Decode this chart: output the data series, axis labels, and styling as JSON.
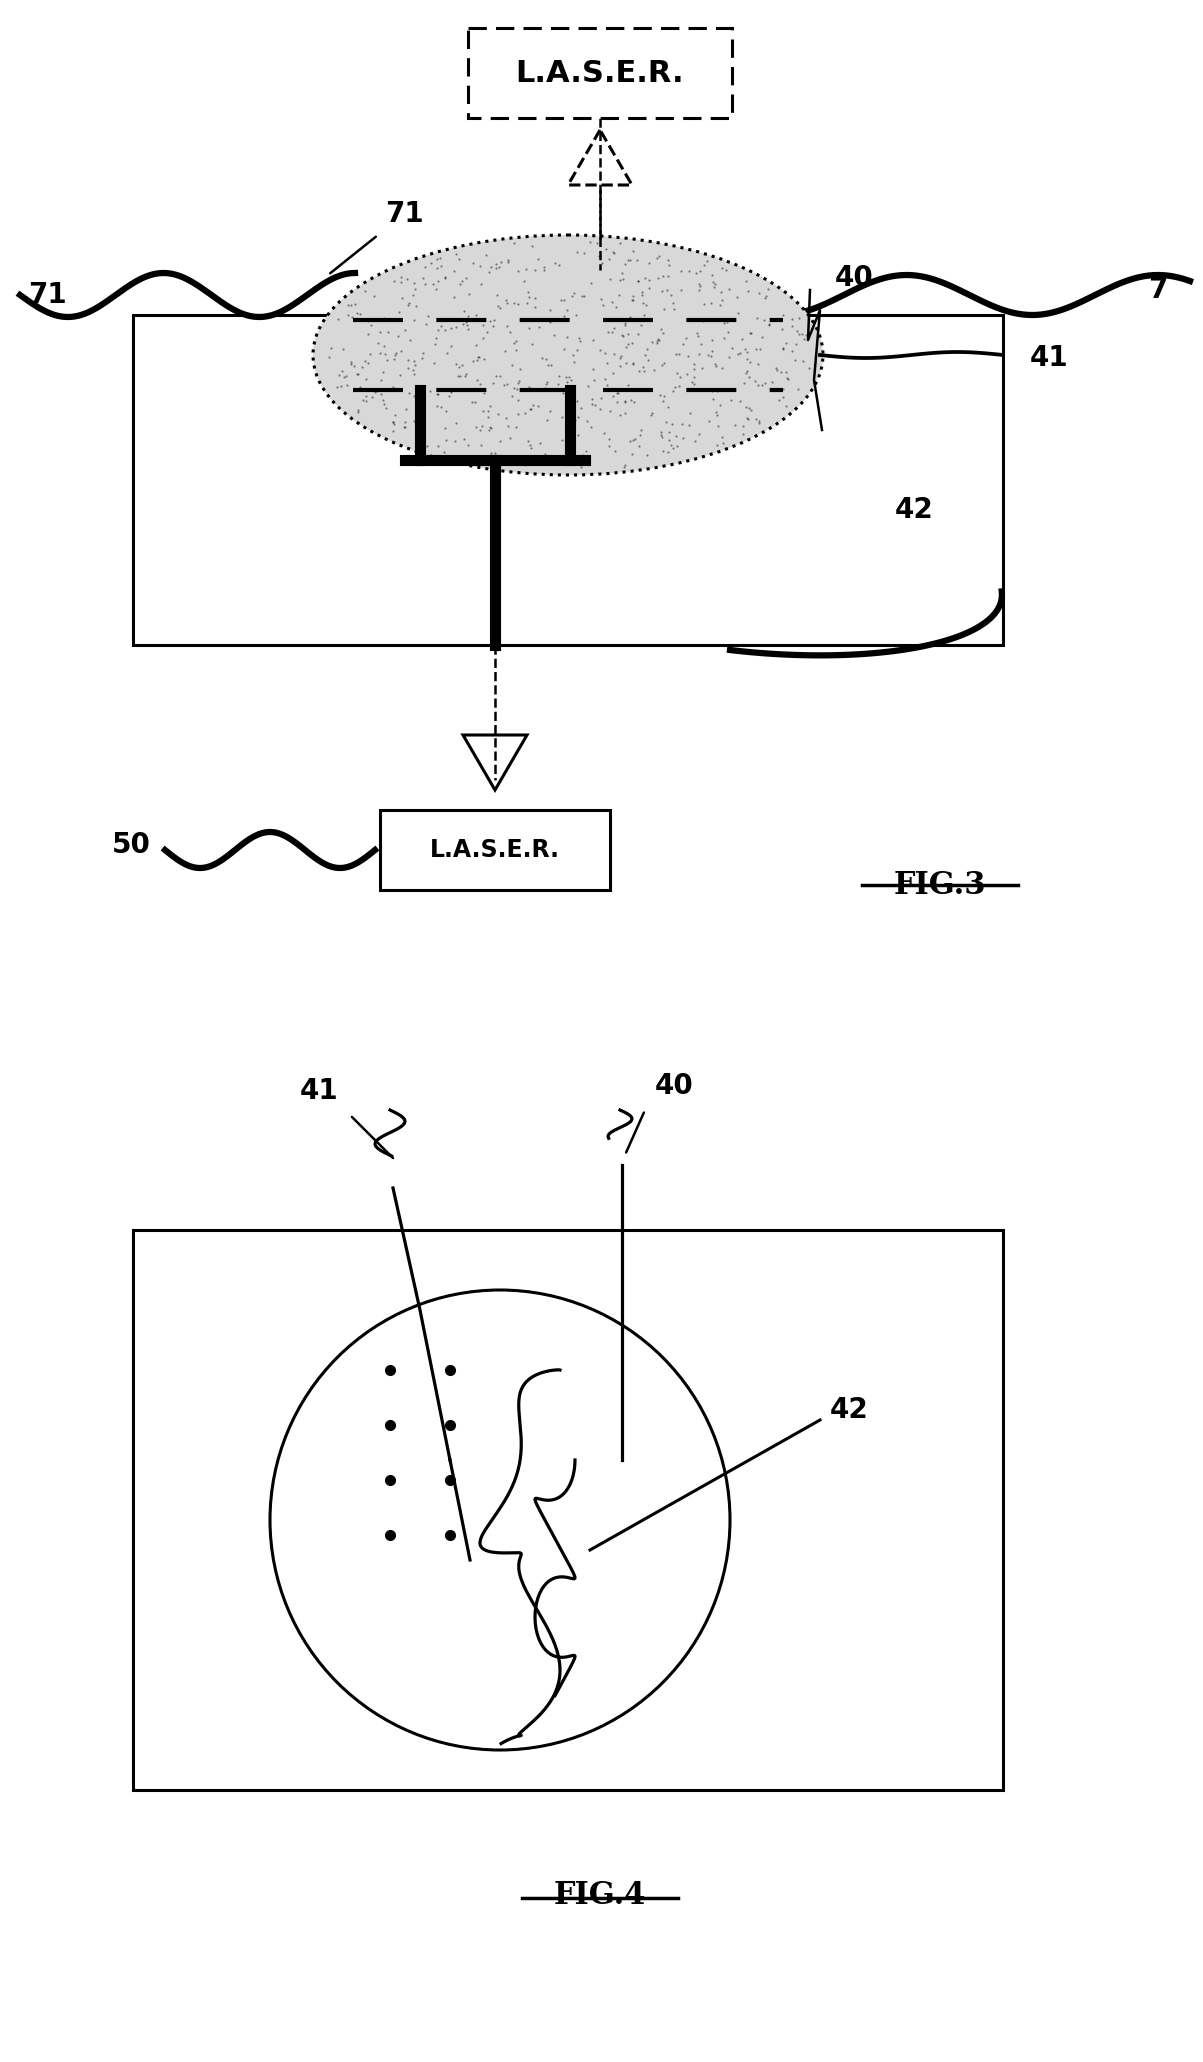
{
  "fig_width": 12.03,
  "fig_height": 20.62,
  "bg_color": "#ffffff",
  "fig3_label": "FIG.3",
  "fig4_label": "FIG.4",
  "labels": {
    "laser_top": "L.A.S.E.R.",
    "laser_bottom": "L.A.S.E.R.",
    "n7": "7",
    "n71a": "71",
    "n71b": "71",
    "n41": "41",
    "n40": "40",
    "n42": "42",
    "n50": "50",
    "n41b": "41",
    "n40b": "40",
    "n42b": "42"
  }
}
